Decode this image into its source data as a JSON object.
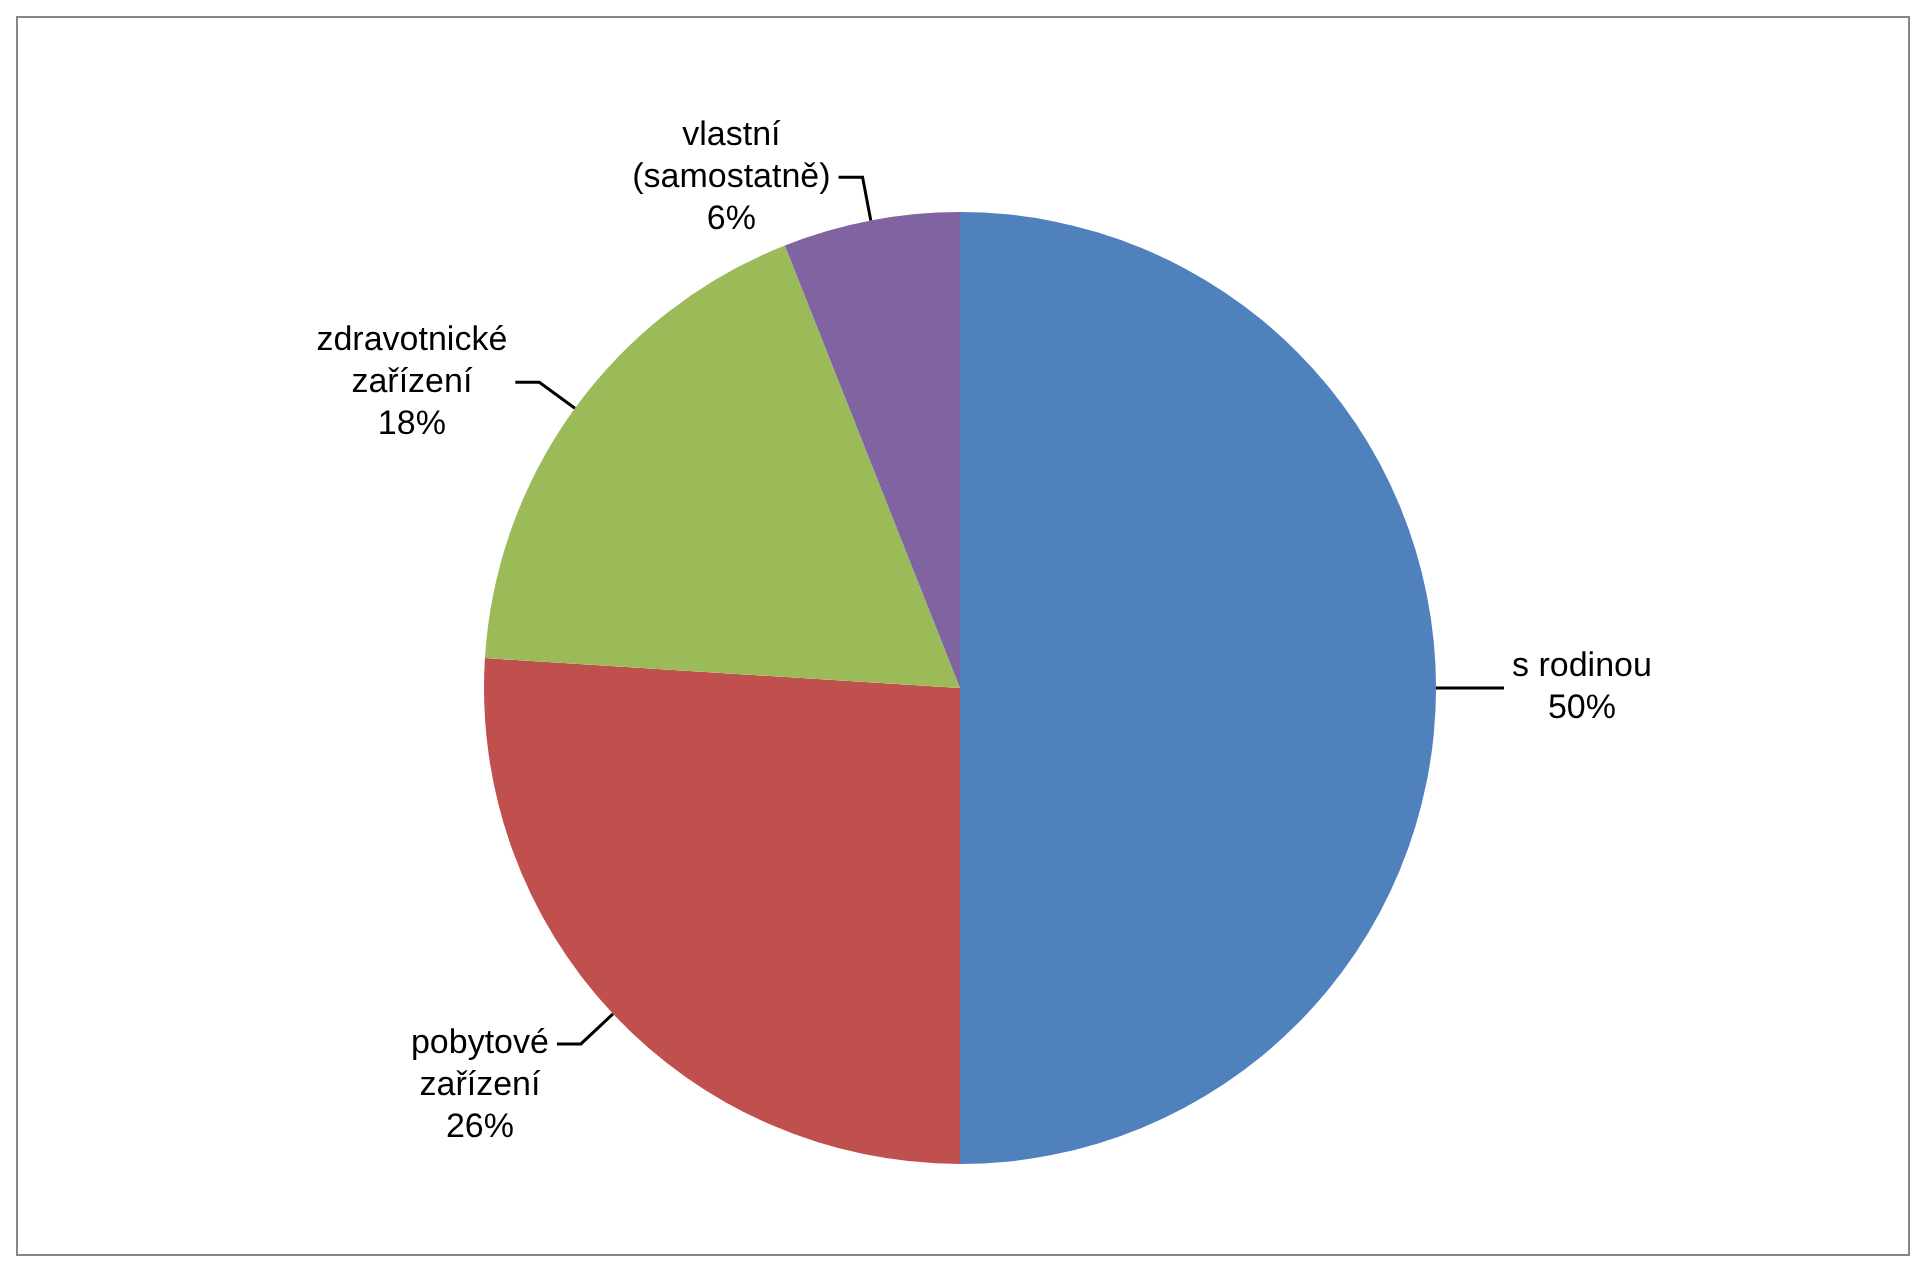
{
  "chart_data": {
    "type": "pie",
    "categories": [
      "s rodinou",
      "pobytové zařízení",
      "zdravotnické zařízení",
      "vlastní (samostatně)"
    ],
    "values": [
      50,
      26,
      18,
      6
    ],
    "colors": [
      "#4f81bd",
      "#c0504d",
      "#9bbb59",
      "#8064a2"
    ],
    "value_labels": [
      "50%",
      "26%",
      "18%",
      "6%"
    ],
    "legend": false
  }
}
